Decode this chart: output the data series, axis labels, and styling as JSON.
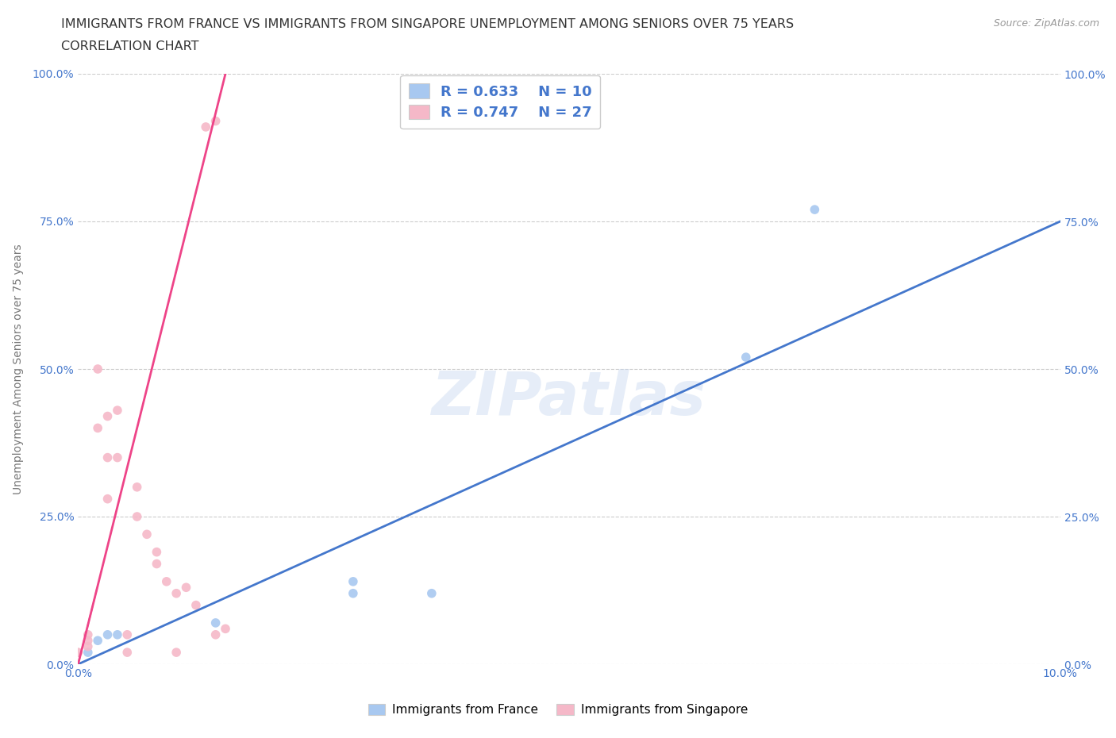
{
  "title1": "IMMIGRANTS FROM FRANCE VS IMMIGRANTS FROM SINGAPORE UNEMPLOYMENT AMONG SENIORS OVER 75 YEARS",
  "title2": "CORRELATION CHART",
  "source": "Source: ZipAtlas.com",
  "ylabel": "Unemployment Among Seniors over 75 years",
  "xlim": [
    0,
    0.1
  ],
  "ylim": [
    0,
    1.0
  ],
  "france_color": "#a8c8f0",
  "singapore_color": "#f5b8c8",
  "france_line_color": "#4477cc",
  "singapore_line_color": "#ee4488",
  "tick_color": "#4477cc",
  "france_R": 0.633,
  "france_N": 10,
  "singapore_R": 0.747,
  "singapore_N": 27,
  "france_x": [
    0.001,
    0.002,
    0.003,
    0.004,
    0.014,
    0.028,
    0.028,
    0.036,
    0.068,
    0.075
  ],
  "france_y": [
    0.02,
    0.04,
    0.05,
    0.05,
    0.07,
    0.12,
    0.14,
    0.12,
    0.52,
    0.77
  ],
  "singapore_x": [
    0.0,
    0.001,
    0.001,
    0.001,
    0.002,
    0.002,
    0.003,
    0.003,
    0.003,
    0.004,
    0.004,
    0.005,
    0.005,
    0.006,
    0.006,
    0.007,
    0.008,
    0.008,
    0.009,
    0.01,
    0.01,
    0.011,
    0.012,
    0.013,
    0.014,
    0.014,
    0.015
  ],
  "singapore_y": [
    0.02,
    0.03,
    0.04,
    0.05,
    0.4,
    0.5,
    0.28,
    0.35,
    0.42,
    0.35,
    0.43,
    0.02,
    0.05,
    0.25,
    0.3,
    0.22,
    0.17,
    0.19,
    0.14,
    0.12,
    0.02,
    0.13,
    0.1,
    0.91,
    0.92,
    0.05,
    0.06
  ],
  "france_line_x0": 0.0,
  "france_line_y0": 0.0,
  "france_line_x1": 0.1,
  "france_line_y1": 0.75,
  "sing_line_x0": 0.0,
  "sing_line_y0": 0.0,
  "sing_line_x1": 0.015,
  "sing_line_y1": 1.0,
  "watermark": "ZIPatlas",
  "background_color": "#ffffff",
  "grid_color": "#cccccc",
  "point_size": 70,
  "legend_label_france": "Immigrants from France",
  "legend_label_singapore": "Immigrants from Singapore"
}
